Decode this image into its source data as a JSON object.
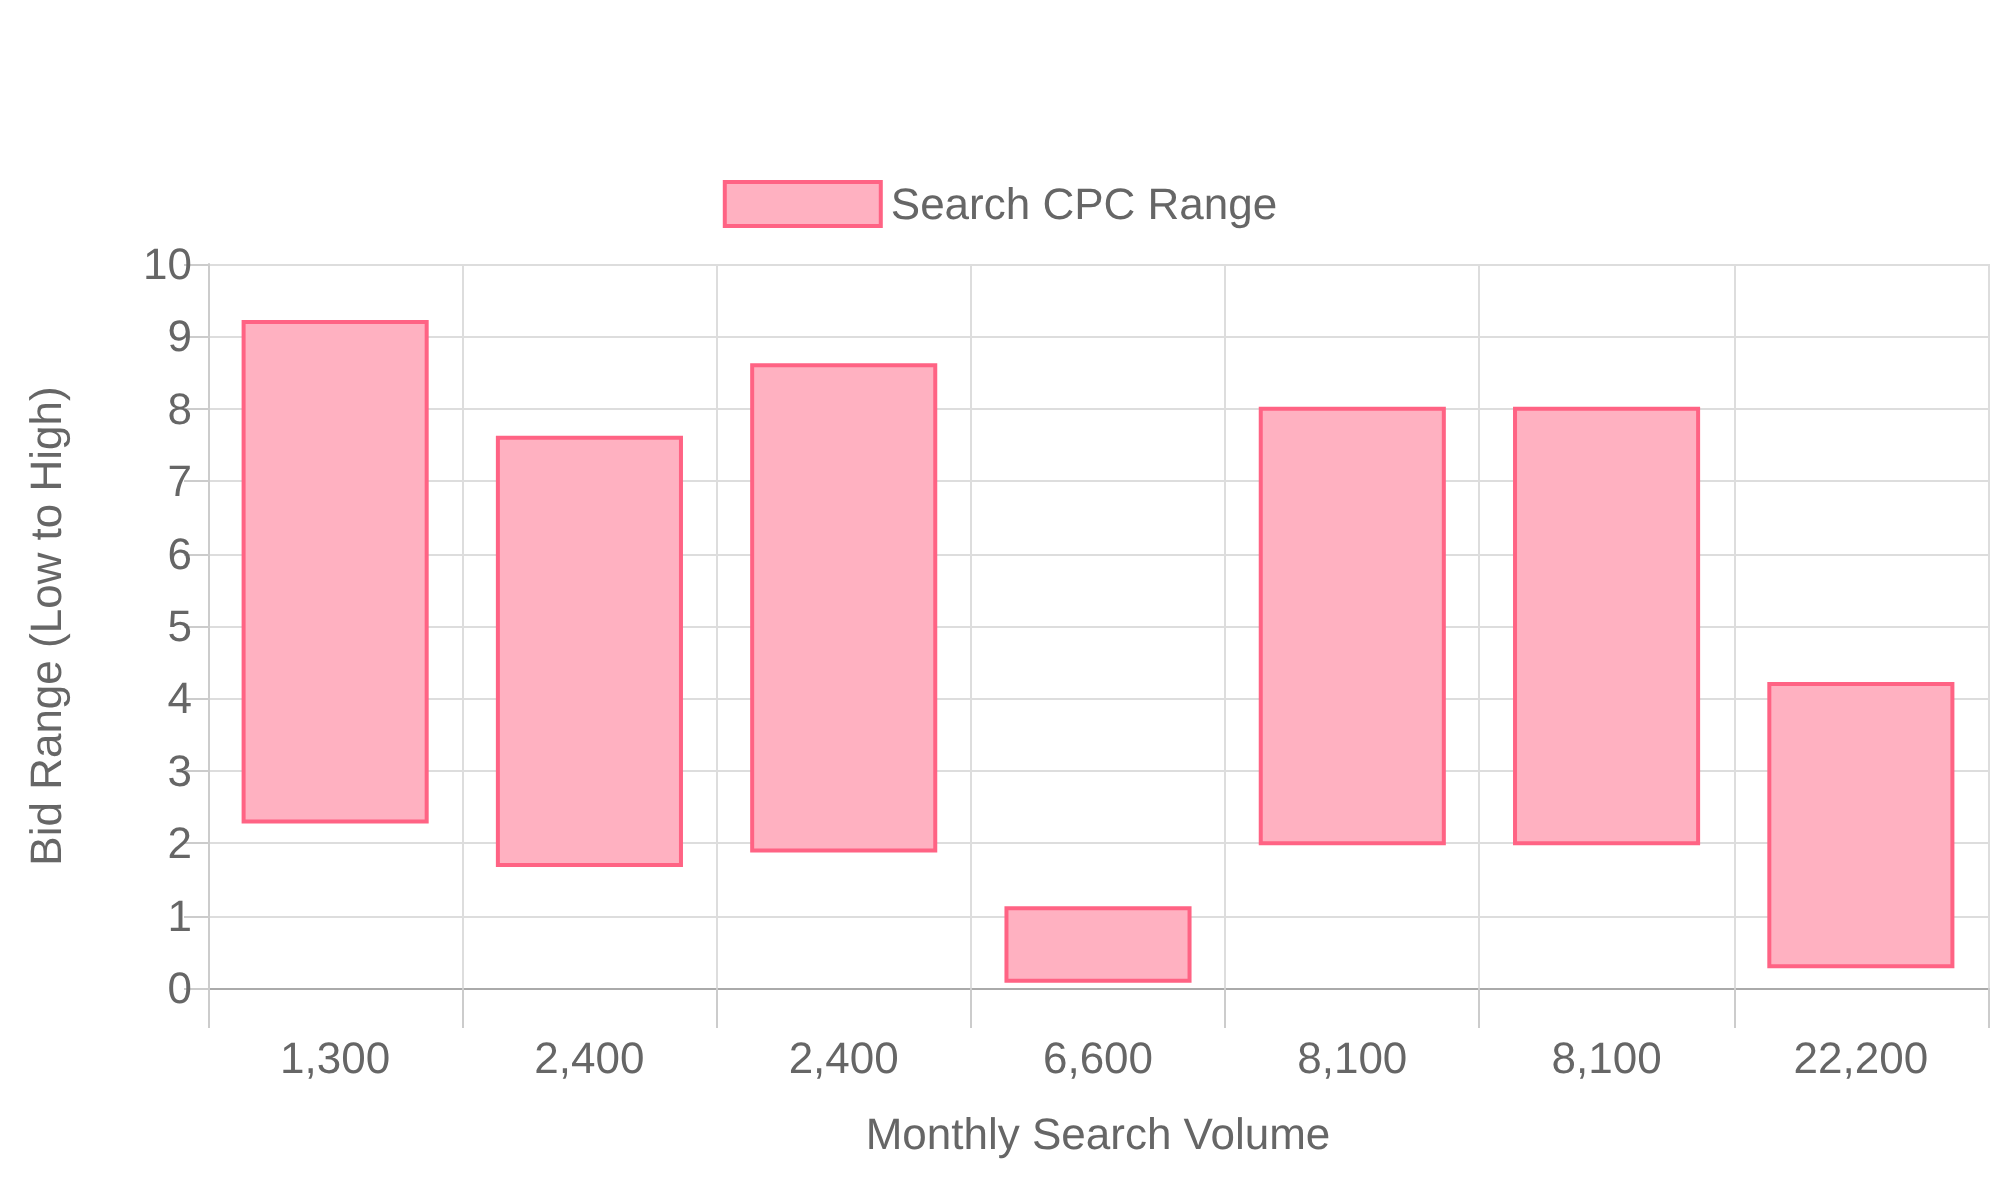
{
  "chart_data": {
    "type": "bar",
    "xlabel": "Monthly Search Volume",
    "ylabel": "Bid Range (Low to High)",
    "categories": [
      "1,300",
      "2,400",
      "2,400",
      "6,600",
      "8,100",
      "8,100",
      "22,200"
    ],
    "series": [
      {
        "name": "Search CPC Range",
        "color": "#ffb1c1",
        "base": [
          2.3,
          1.7,
          1.9,
          0.1,
          2,
          2,
          0.3
        ],
        "values": [
          6.9,
          5.9,
          6.7,
          1.0,
          6,
          6,
          3.9
        ]
      }
    ],
    "ylim": [
      0,
      10
    ],
    "yticks": [
      0,
      1,
      2,
      3,
      4,
      5,
      6,
      7,
      8,
      9,
      10
    ],
    "grid": true,
    "legend": "top"
  }
}
